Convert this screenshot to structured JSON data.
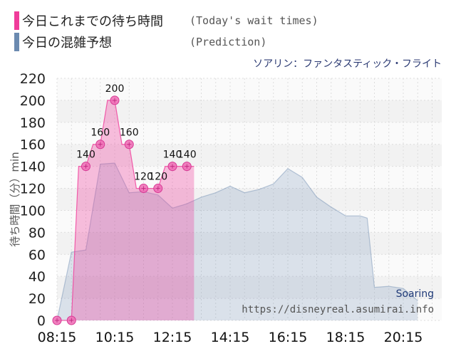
{
  "legend": {
    "today_label": "今日これまでの待ち時間",
    "today_sub": "(Today's wait times)",
    "today_color": "#f03c9a",
    "pred_label": "今日の混雑予想",
    "pred_sub": "(Prediction)",
    "pred_color": "#6b8ab0"
  },
  "ride_title": "ソアリン：ファンタスティック・フライト",
  "credit": {
    "name": "Soaring",
    "url": "https://disneyreal.asumirai.info"
  },
  "chart_data": {
    "type": "area",
    "xlabel": "",
    "ylabel": "待ち時間（分）min",
    "ylim": [
      0,
      220
    ],
    "yticks": [
      0,
      20,
      40,
      60,
      80,
      100,
      120,
      140,
      160,
      180,
      200,
      220
    ],
    "xlim_minutes": [
      495,
      1295
    ],
    "xticks": [
      "08:15",
      "10:15",
      "12:15",
      "14:15",
      "16:15",
      "18:15",
      "20:15"
    ],
    "grid": true,
    "series": [
      {
        "name": "今日これまでの待ち時間",
        "color": "#f03c9a",
        "x": [
          "08:15",
          "08:30",
          "08:45",
          "09:00",
          "09:15",
          "09:30",
          "09:45",
          "10:00",
          "10:15",
          "10:30",
          "10:45",
          "11:00",
          "11:15",
          "11:30",
          "11:45",
          "12:00",
          "12:15",
          "12:30",
          "12:45",
          "13:00"
        ],
        "values": [
          0,
          0,
          0,
          140,
          140,
          160,
          160,
          200,
          200,
          160,
          160,
          120,
          120,
          120,
          120,
          140,
          140,
          140,
          140,
          140
        ],
        "markers": [
          {
            "x": "08:15",
            "value": 0,
            "label": ""
          },
          {
            "x": "08:45",
            "value": 0,
            "label": ""
          },
          {
            "x": "09:15",
            "value": 140,
            "label": "140"
          },
          {
            "x": "09:45",
            "value": 160,
            "label": "160"
          },
          {
            "x": "10:15",
            "value": 200,
            "label": "200"
          },
          {
            "x": "10:45",
            "value": 160,
            "label": "160"
          },
          {
            "x": "11:15",
            "value": 120,
            "label": "120"
          },
          {
            "x": "11:45",
            "value": 120,
            "label": "120"
          },
          {
            "x": "12:15",
            "value": 140,
            "label": "140"
          },
          {
            "x": "12:45",
            "value": 140,
            "label": "140"
          }
        ]
      },
      {
        "name": "今日の混雑予想",
        "color": "#6b8ab0",
        "x": [
          "08:15",
          "08:45",
          "09:15",
          "09:45",
          "10:15",
          "10:45",
          "11:15",
          "11:45",
          "12:15",
          "12:45",
          "13:15",
          "13:45",
          "14:15",
          "14:45",
          "15:15",
          "15:45",
          "16:15",
          "16:45",
          "17:15",
          "17:45",
          "18:15",
          "18:45",
          "19:00",
          "19:15",
          "19:45",
          "20:15",
          "20:45"
        ],
        "values": [
          0,
          62,
          64,
          142,
          143,
          116,
          117,
          114,
          102,
          106,
          112,
          116,
          122,
          116,
          119,
          124,
          138,
          130,
          112,
          103,
          95,
          95,
          93,
          30,
          31,
          29,
          18
        ]
      }
    ]
  }
}
